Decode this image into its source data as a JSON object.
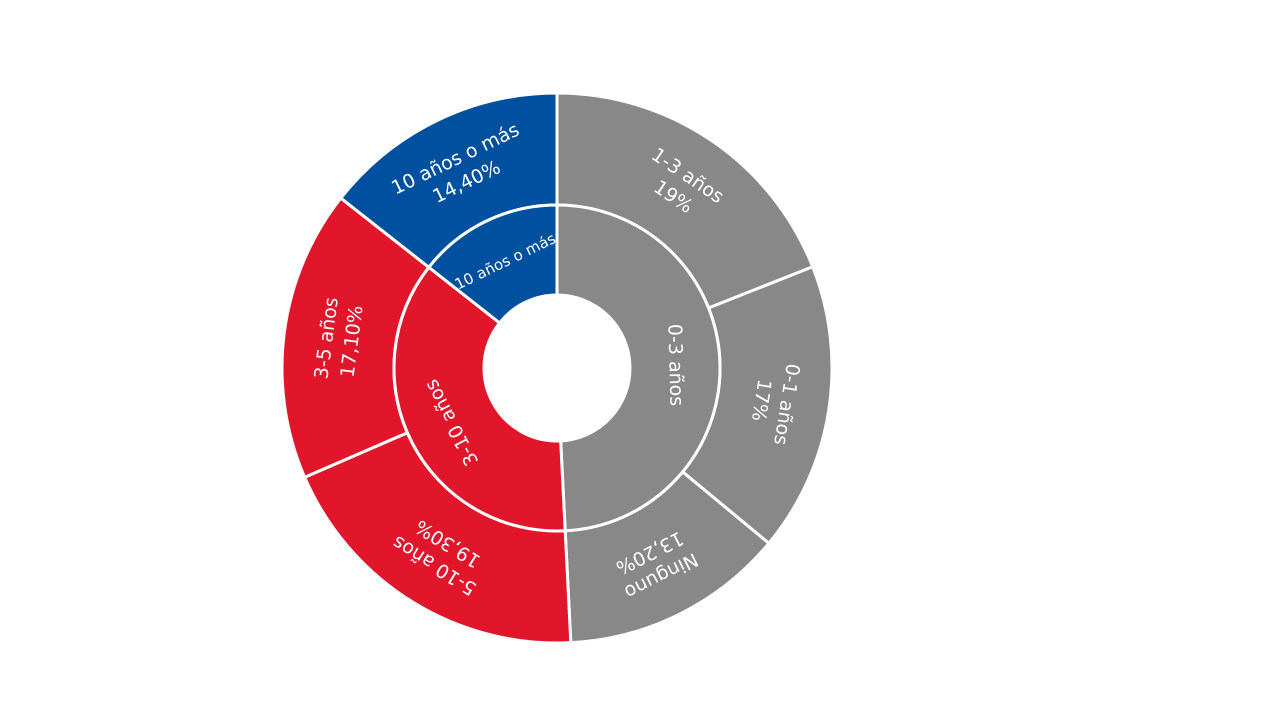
{
  "chart_data": {
    "type": "sunburst",
    "groups": [
      {
        "name": "0-3 años",
        "color": "#888888",
        "categories": [
          "1-3 años",
          "0-1 años",
          "Ninguno"
        ],
        "values": [
          19,
          17,
          13.2
        ],
        "value_labels": [
          "19%",
          "17%",
          "13,20%"
        ]
      },
      {
        "name": "3-10 años",
        "color": "#e1162a",
        "categories": [
          "5-10 años",
          "3-5 años"
        ],
        "values": [
          19.3,
          17.1
        ],
        "value_labels": [
          "19,30%",
          "17,10%"
        ]
      },
      {
        "name": "10 años o más",
        "color": "#0050a0",
        "categories": [
          "10 años o más"
        ],
        "values": [
          14.4
        ],
        "value_labels": [
          "14,40%"
        ]
      }
    ]
  }
}
